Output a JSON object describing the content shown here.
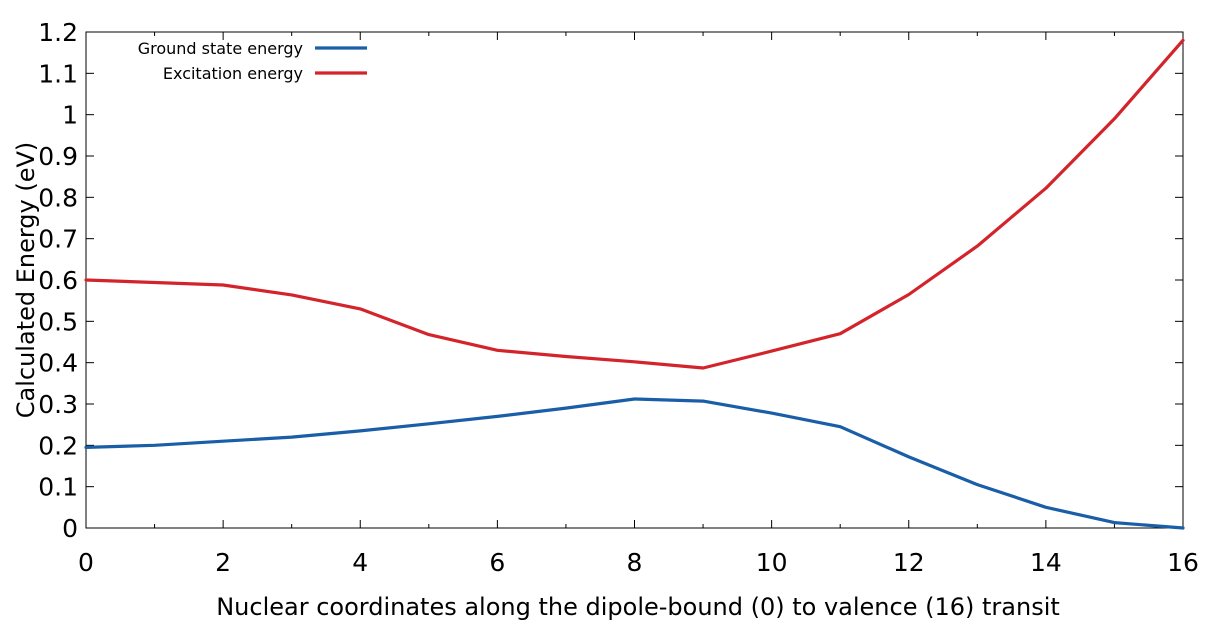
{
  "chart_data": {
    "type": "line",
    "title": "",
    "xlabel": "Nuclear coordinates along the dipole-bound (0) to valence (16) transit",
    "ylabel": "Calculated Energy (eV)",
    "xlim": [
      0,
      16
    ],
    "ylim": [
      0,
      1.2
    ],
    "xticks": [
      0,
      2,
      4,
      6,
      8,
      10,
      12,
      14,
      16
    ],
    "yticks": [
      0,
      0.1,
      0.2,
      0.3,
      0.4,
      0.5,
      0.6,
      0.7,
      0.8,
      0.9,
      1,
      1.1,
      1.2
    ],
    "grid": false,
    "legend_position": "top-left",
    "x": [
      0,
      1,
      2,
      3,
      4,
      5,
      6,
      7,
      8,
      9,
      10,
      11,
      12,
      13,
      14,
      15,
      16
    ],
    "series": [
      {
        "name": "Ground state energy",
        "color": "#1a5ea8",
        "values": [
          0.195,
          0.2,
          0.21,
          0.22,
          0.235,
          0.252,
          0.27,
          0.29,
          0.312,
          0.307,
          0.278,
          0.245,
          0.172,
          0.105,
          0.05,
          0.013,
          0.0
        ]
      },
      {
        "name": "Excitation energy",
        "color": "#d4242b",
        "values": [
          0.6,
          0.594,
          0.588,
          0.564,
          0.53,
          0.468,
          0.43,
          0.415,
          0.402,
          0.387,
          0.428,
          0.47,
          0.565,
          0.682,
          0.822,
          0.99,
          1.18
        ]
      }
    ]
  }
}
